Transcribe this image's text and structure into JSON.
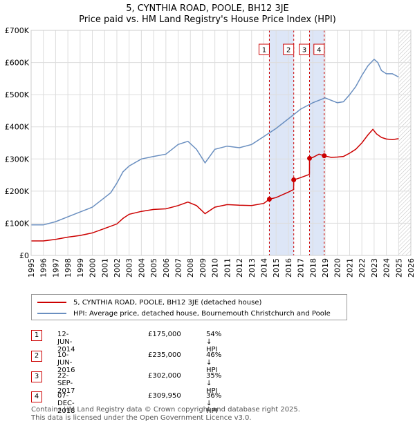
{
  "title": "5, CYNTHIA ROAD, POOLE, BH12 3JE",
  "subtitle": "Price paid vs. HM Land Registry's House Price Index (HPI)",
  "colors": {
    "property": "#cc0000",
    "hpi": "#6a8fc0",
    "band": "#dde6f7",
    "hatch": "#bbbbbb"
  },
  "legend": {
    "property_label": "5, CYNTHIA ROAD, POOLE, BH12 3JE (detached house)",
    "hpi_label": "HPI: Average price, detached house, Bournemouth Christchurch and Poole"
  },
  "transactions": [
    {
      "num": "1",
      "date": "12-JUN-2014",
      "price": "£175,000",
      "hpi_diff": "54% ↓ HPI"
    },
    {
      "num": "2",
      "date": "10-JUN-2016",
      "price": "£235,000",
      "hpi_diff": "46% ↓ HPI"
    },
    {
      "num": "3",
      "date": "22-SEP-2017",
      "price": "£302,000",
      "hpi_diff": "35% ↓ HPI"
    },
    {
      "num": "4",
      "date": "07-DEC-2018",
      "price": "£309,950",
      "hpi_diff": "36% ↓ HPI"
    }
  ],
  "footer": {
    "line1": "Contains HM Land Registry data © Crown copyright and database right 2025.",
    "line2": "This data is licensed under the Open Government Licence v3.0."
  },
  "chart_data": {
    "type": "line",
    "xlim": [
      1995,
      2026
    ],
    "ylim": [
      0,
      700000
    ],
    "y_ticks": [
      0,
      100000,
      200000,
      300000,
      400000,
      500000,
      600000,
      700000
    ],
    "y_tick_labels": [
      "£0",
      "£100K",
      "£200K",
      "£300K",
      "£400K",
      "£500K",
      "£600K",
      "£700K"
    ],
    "x_ticks": [
      1995,
      1996,
      1997,
      1998,
      1999,
      2000,
      2001,
      2002,
      2003,
      2004,
      2005,
      2006,
      2007,
      2008,
      2009,
      2010,
      2011,
      2012,
      2013,
      2014,
      2015,
      2016,
      2017,
      2018,
      2019,
      2020,
      2021,
      2022,
      2023,
      2024,
      2025,
      2026
    ],
    "x_tick_labels": [
      "1995",
      "1996",
      "1997",
      "1998",
      "1999",
      "2000",
      "2001",
      "2002",
      "2003",
      "2004",
      "2005",
      "2006",
      "2007",
      "2008",
      "2009",
      "2010",
      "2011",
      "2012",
      "2013",
      "2014",
      "2015",
      "2016",
      "2017",
      "2018",
      "2019",
      "2020",
      "2021",
      "2022",
      "2023",
      "2024",
      "2025",
      "2026"
    ],
    "shaded_bands": [
      [
        2014.45,
        2016.44
      ],
      [
        2017.73,
        2018.93
      ]
    ],
    "hatch_from": 2025.0,
    "markers": [
      {
        "label": "1",
        "x": 2014.45,
        "y": 175000
      },
      {
        "label": "2",
        "x": 2016.44,
        "y": 235000
      },
      {
        "label": "3",
        "x": 2017.73,
        "y": 302000
      },
      {
        "label": "4",
        "x": 2018.93,
        "y": 309950
      }
    ],
    "series": [
      {
        "name": "5, CYNTHIA ROAD, POOLE, BH12 3JE (detached house)",
        "color": "#cc0000",
        "x": [
          1995.0,
          1996.0,
          1997.0,
          1998.0,
          1999.0,
          2000.0,
          2001.0,
          2002.0,
          2002.5,
          2003.0,
          2004.0,
          2005.0,
          2006.0,
          2007.0,
          2007.8,
          2008.5,
          2009.2,
          2010.0,
          2011.0,
          2012.0,
          2013.0,
          2014.0,
          2014.45,
          2015.0,
          2016.0,
          2016.43,
          2016.44,
          2017.0,
          2017.72,
          2017.73,
          2018.0,
          2018.5,
          2018.93,
          2019.5,
          2020.0,
          2020.5,
          2021.0,
          2021.5,
          2022.0,
          2022.5,
          2022.9,
          2023.2,
          2023.6,
          2024.0,
          2024.5,
          2025.0
        ],
        "y": [
          45000,
          45000,
          50000,
          57000,
          62000,
          70000,
          84000,
          98000,
          115000,
          128000,
          137000,
          143000,
          145000,
          155000,
          166000,
          155000,
          130000,
          150000,
          158000,
          156000,
          155000,
          162000,
          175000,
          180000,
          197000,
          205000,
          235000,
          242000,
          252000,
          302000,
          305000,
          315000,
          309950,
          305000,
          306000,
          308000,
          318000,
          330000,
          350000,
          375000,
          392000,
          378000,
          367000,
          362000,
          360000,
          363000
        ]
      },
      {
        "name": "HPI: Average price, detached house, Bournemouth Christchurch and Poole",
        "color": "#6a8fc0",
        "x": [
          1995.0,
          1996.0,
          1997.0,
          1998.0,
          1999.0,
          2000.0,
          2001.0,
          2001.5,
          2002.0,
          2002.5,
          2003.0,
          2004.0,
          2005.0,
          2006.0,
          2006.5,
          2007.0,
          2007.8,
          2008.5,
          2009.2,
          2010.0,
          2011.0,
          2012.0,
          2013.0,
          2014.0,
          2015.0,
          2016.0,
          2017.0,
          2018.0,
          2019.0,
          2020.0,
          2020.5,
          2021.0,
          2021.5,
          2022.0,
          2022.5,
          2023.0,
          2023.3,
          2023.6,
          2024.0,
          2024.5,
          2025.0
        ],
        "y": [
          95000,
          95000,
          105000,
          120000,
          135000,
          150000,
          180000,
          195000,
          225000,
          260000,
          278000,
          300000,
          308000,
          315000,
          330000,
          345000,
          355000,
          330000,
          288000,
          330000,
          340000,
          335000,
          345000,
          370000,
          395000,
          425000,
          455000,
          475000,
          490000,
          475000,
          478000,
          500000,
          525000,
          560000,
          590000,
          610000,
          600000,
          575000,
          565000,
          565000,
          555000
        ]
      }
    ]
  }
}
